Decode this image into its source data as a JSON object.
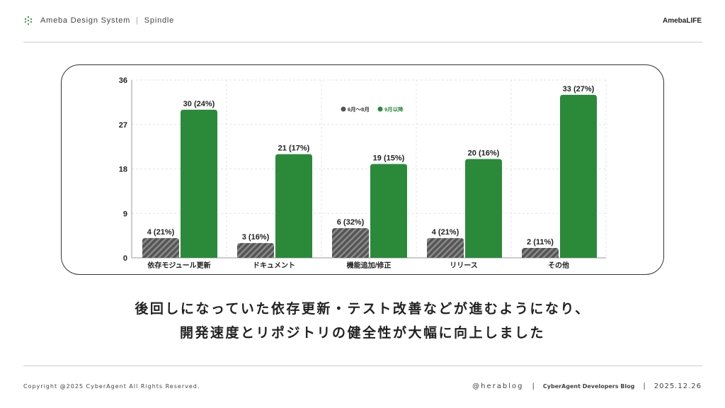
{
  "header": {
    "brand": "Ameba Design System",
    "product": "Spindle",
    "logo": "AmebaLIFE",
    "icon": "spindle-logo-icon"
  },
  "chart_data": {
    "type": "bar",
    "categories": [
      "依存モジュール更新",
      "ドキュメント",
      "機能追加/修正",
      "リリース",
      "その他"
    ],
    "series": [
      {
        "name": "6月〜8月",
        "values": [
          4,
          3,
          6,
          4,
          2
        ],
        "labels": [
          "4 (21%)",
          "3 (16%)",
          "6 (32%)",
          "4 (21%)",
          "2 (11%)"
        ],
        "color": "#555555",
        "pattern": "hatched"
      },
      {
        "name": "9月以降",
        "values": [
          30,
          21,
          19,
          20,
          33
        ],
        "labels": [
          "30 (24%)",
          "21 (17%)",
          "19 (15%)",
          "20 (16%)",
          "33 (27%)"
        ],
        "color": "#2b8a3a"
      }
    ],
    "ylim": [
      0,
      36
    ],
    "yticks": [
      0,
      9,
      18,
      27,
      36
    ],
    "grid": true,
    "legend": "top-center"
  },
  "message": {
    "line1": "後回しになっていた依存更新・テスト改善などが進むようになり、",
    "line2": "開発速度とリポジトリの健全性が大幅に向上しました"
  },
  "footer": {
    "copyright": "Copyright @2025 CyberAgent All Rights Reserved.",
    "author": "@herablog",
    "blog": "CyberAgent Developers Blog",
    "date": "2025.12.26",
    "sep": "|"
  }
}
